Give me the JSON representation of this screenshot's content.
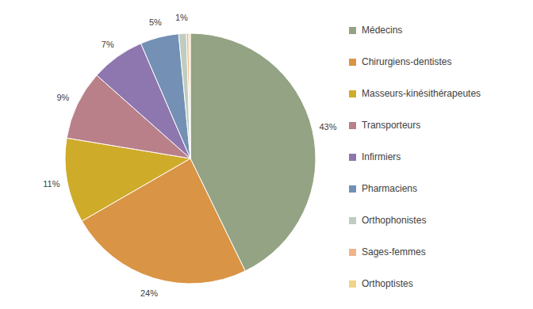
{
  "chart_data": {
    "type": "pie",
    "categories": [
      "Médecins",
      "Chirurgiens-dentistes",
      "Masseurs-kinésithérapeutes",
      "Transporteurs",
      "Infirmiers",
      "Pharmaciens",
      "Orthophonistes",
      "Sages-femmes",
      "Orthoptistes"
    ],
    "values": [
      43,
      24,
      11,
      9,
      7,
      5,
      1,
      0.3,
      0.2
    ],
    "value_labels": [
      "43%",
      "24%",
      "11%",
      "9%",
      "7%",
      "5%",
      "1%",
      null,
      null
    ],
    "colors": [
      "#93a383",
      "#d99445",
      "#cfab2a",
      "#b98089",
      "#8e76ae",
      "#7490b4",
      "#bfcdc0",
      "#f0b48a",
      "#f0d48a"
    ],
    "data_labels": true,
    "legend": "right"
  }
}
